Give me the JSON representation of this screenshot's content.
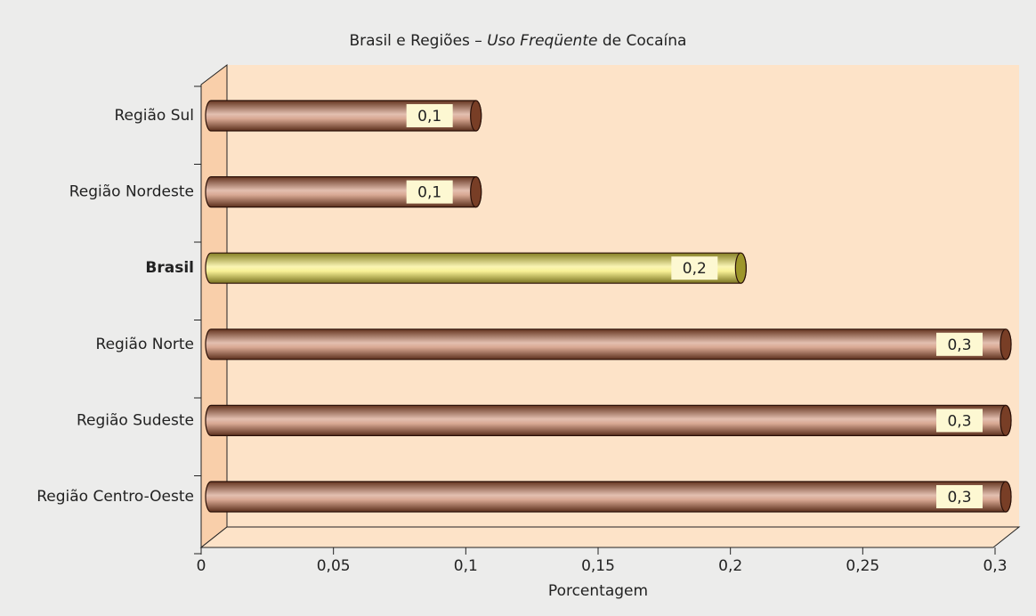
{
  "chart_data": {
    "type": "bar",
    "orientation": "horizontal",
    "title": [
      "Brasil e Regiões – ",
      "Uso Freqüente",
      " de Cocaína"
    ],
    "categories": [
      "Região Sul",
      "Região Nordeste",
      "Brasil",
      "Região Norte",
      "Região Sudeste",
      "Região Centro-Oeste"
    ],
    "values": [
      0.1,
      0.1,
      0.2,
      0.3,
      0.3,
      0.3
    ],
    "value_labels": [
      "0,1",
      "0,1",
      "0,2",
      "0,3",
      "0,3",
      "0,3"
    ],
    "colors": [
      "#b8603a",
      "#b8603a",
      "#f2e640",
      "#b8603a",
      "#b8603a",
      "#b8603a"
    ],
    "highlight": 2,
    "xlabel": "Porcentagem",
    "xlim": [
      0,
      0.3
    ],
    "xticks": [
      0,
      {
        "value": 0.05,
        "label": "0,05"
      },
      {
        "value": 0.1,
        "label": "0,1"
      },
      {
        "value": 0.15,
        "label": "0,15"
      },
      {
        "value": 0.2,
        "label": "0,2"
      },
      {
        "value": 0.25,
        "label": "0,25"
      },
      {
        "value": 0.3,
        "label": "0,3"
      }
    ]
  }
}
